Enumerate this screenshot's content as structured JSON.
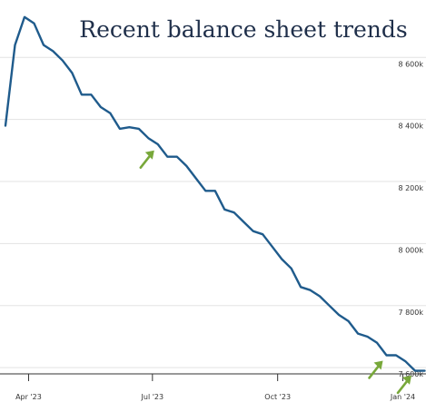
{
  "chart_data": {
    "type": "line",
    "title": "Recent balance sheet trends",
    "xlabel": "",
    "ylabel": "",
    "x_ticks": [
      {
        "date": "2023-04-01",
        "label": "Apr '23"
      },
      {
        "date": "2023-07-01",
        "label": "Jul '23"
      },
      {
        "date": "2023-10-01",
        "label": "Oct '23"
      },
      {
        "date": "2024-01-01",
        "label": "Jan '24"
      }
    ],
    "y_ticks": [
      {
        "value": 7600,
        "label": "7 600k"
      },
      {
        "value": 7800,
        "label": "7 800k"
      },
      {
        "value": 8000,
        "label": "8 000k"
      },
      {
        "value": 8200,
        "label": "8 200k"
      },
      {
        "value": 8400,
        "label": "8 400k"
      },
      {
        "value": 8600,
        "label": "8 600k"
      }
    ],
    "xlim": [
      "2023-03-15",
      "2024-01-18"
    ],
    "ylim": [
      7580,
      8750
    ],
    "grid": "horizontal",
    "legend": "none",
    "colors": {
      "line": "#1f5b8c",
      "arrows": "#78a83a",
      "title": "#1f2f4a"
    },
    "series": [
      {
        "name": "",
        "x": [
          "2023-03-15",
          "2023-03-22",
          "2023-03-29",
          "2023-04-05",
          "2023-04-12",
          "2023-04-19",
          "2023-04-26",
          "2023-05-03",
          "2023-05-10",
          "2023-05-17",
          "2023-05-24",
          "2023-05-31",
          "2023-06-07",
          "2023-06-14",
          "2023-06-21",
          "2023-06-28",
          "2023-07-05",
          "2023-07-12",
          "2023-07-19",
          "2023-07-26",
          "2023-08-02",
          "2023-08-09",
          "2023-08-16",
          "2023-08-23",
          "2023-08-30",
          "2023-09-06",
          "2023-09-13",
          "2023-09-20",
          "2023-09-27",
          "2023-10-04",
          "2023-10-11",
          "2023-10-18",
          "2023-10-25",
          "2023-11-01",
          "2023-11-08",
          "2023-11-15",
          "2023-11-22",
          "2023-11-29",
          "2023-12-06",
          "2023-12-13",
          "2023-12-20",
          "2023-12-27",
          "2024-01-03",
          "2024-01-10",
          "2024-01-17"
        ],
        "values": [
          8380,
          8640,
          8730,
          8710,
          8640,
          8620,
          8590,
          8550,
          8480,
          8480,
          8440,
          8420,
          8370,
          8375,
          8370,
          8340,
          8320,
          8280,
          8280,
          8250,
          8210,
          8170,
          8170,
          8110,
          8100,
          8070,
          8040,
          8030,
          7990,
          7950,
          7920,
          7860,
          7850,
          7830,
          7800,
          7770,
          7750,
          7710,
          7700,
          7680,
          7640,
          7640,
          7620,
          7590,
          7590
        ]
      }
    ],
    "annotations": [
      {
        "type": "arrow",
        "date": "2023-07-05",
        "value": 8318
      },
      {
        "type": "arrow",
        "date": "2023-12-20",
        "value": 7640
      },
      {
        "type": "arrow",
        "date": "2024-01-10",
        "value": 7592
      }
    ]
  }
}
